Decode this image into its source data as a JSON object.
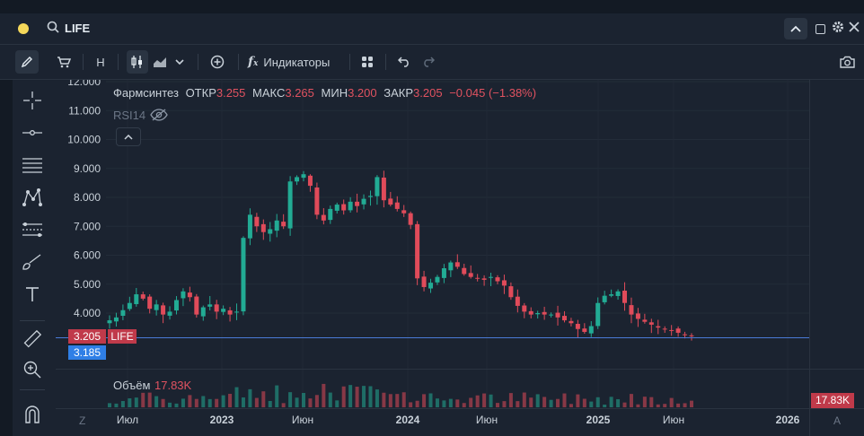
{
  "header": {
    "symbol": "LIFE"
  },
  "toolbar": {
    "resolution": "H",
    "indicators_label": "Индикаторы"
  },
  "legend": {
    "name": "Фармсинтез",
    "open_label": "ОТКР",
    "open": "3.255",
    "high_label": "МАКС",
    "high": "3.265",
    "low_label": "МИН",
    "low": "3.200",
    "close_label": "ЗАКР",
    "close": "3.205",
    "change": "−0.045 (−1.38%)",
    "rsi_label": "RSI14"
  },
  "volume_label": "Объём",
  "volume_value": "17.83K",
  "price_labels": {
    "last": "3.205",
    "symbol": "LIFE",
    "ask": "3.185"
  },
  "axis_buttons": {
    "left": "Z",
    "right": "A"
  },
  "colors": {
    "up": "#22ab94",
    "down": "#e04b5a",
    "bg": "#1b2330",
    "ask": "#2f7fe6"
  },
  "chart_data": {
    "type": "candlestick",
    "y_ticks": [
      "12.000",
      "11.000",
      "10.000",
      "9.000",
      "8.000",
      "7.000",
      "6.000",
      "5.000",
      "4.000"
    ],
    "ylim": [
      3.0,
      12.0
    ],
    "x_ticks": [
      "Июл",
      "2023",
      "Июн",
      "2024",
      "Июн",
      "2025",
      "Июн",
      "2026"
    ],
    "series_close": [
      3.75,
      3.85,
      4.1,
      4.35,
      4.65,
      4.5,
      4.15,
      4.3,
      3.95,
      4.05,
      4.45,
      4.75,
      4.55,
      3.95,
      4.2,
      4.3,
      4.05,
      4.15,
      3.95,
      4.05,
      6.6,
      7.4,
      7.0,
      6.8,
      6.9,
      7.2,
      7.0,
      8.55,
      8.7,
      8.8,
      8.4,
      7.4,
      7.2,
      7.6,
      7.75,
      7.55,
      7.85,
      7.7,
      7.95,
      8.05,
      8.7,
      7.9,
      7.75,
      7.6,
      7.45,
      7.05,
      5.2,
      4.9,
      5.05,
      5.25,
      5.55,
      5.75,
      5.6,
      5.35,
      5.25,
      5.2,
      5.15,
      5.25,
      5.1,
      4.95,
      4.55,
      4.25,
      4.05,
      3.95,
      4.0,
      3.95,
      3.95,
      3.85,
      3.75,
      3.65,
      3.45,
      3.35,
      3.55,
      4.35,
      4.6,
      4.65,
      4.75,
      4.35,
      3.95,
      3.8,
      3.7,
      3.6,
      3.5,
      3.45,
      3.4,
      3.32,
      3.255,
      3.205
    ]
  }
}
